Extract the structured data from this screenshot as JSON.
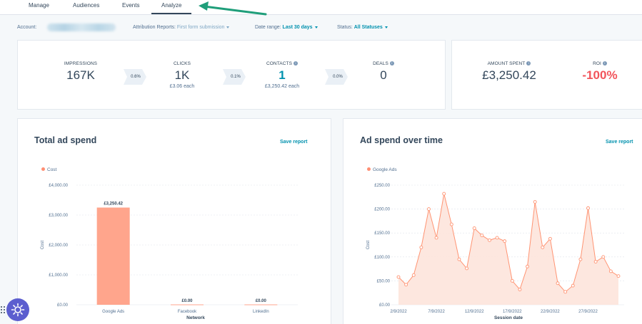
{
  "tabs": [
    {
      "label": "Manage"
    },
    {
      "label": "Audiences"
    },
    {
      "label": "Events"
    },
    {
      "label": "Analyze"
    }
  ],
  "filters": {
    "account_label": "Account:",
    "attribution_label": "Attribution Reports:",
    "attribution_value": "First form submission",
    "date_label": "Date range:",
    "date_value": "Last 30 days",
    "status_label": "Status:",
    "status_value": "All Statuses"
  },
  "kpis": {
    "impressions": {
      "label": "IMPRESSIONS",
      "value": "167K"
    },
    "rate1": "0.6%",
    "clicks": {
      "label": "CLICKS",
      "value": "1K",
      "sub": "£3.06 each"
    },
    "rate2": "0.1%",
    "contacts": {
      "label": "CONTACTS",
      "value": "1",
      "sub": "£3,250.42 each"
    },
    "rate3": "0.0%",
    "deals": {
      "label": "DEALS",
      "value": "0"
    },
    "amount_spent": {
      "label": "AMOUNT SPENT",
      "value": "£3,250.42"
    },
    "roi": {
      "label": "ROI",
      "value": "-100%"
    }
  },
  "total_ad_spend": {
    "title": "Total ad spend",
    "save": "Save report",
    "legend": "Cost"
  },
  "ad_spend_over_time": {
    "title": "Ad spend over time",
    "save": "Save report",
    "legend": "Google Ads"
  },
  "colors": {
    "accent": "#0091ae",
    "bar": "#ffa58c",
    "line": "#ff9473",
    "area": "#fde4dc",
    "negative": "#f2545b",
    "help_button": "#5c5ecf"
  },
  "chart_data": [
    {
      "type": "bar",
      "title": "Total ad spend",
      "categories": [
        "Google Ads",
        "Facebook",
        "LinkedIn"
      ],
      "values": [
        3250.42,
        0,
        0
      ],
      "value_labels": [
        "£3,250.42",
        "£0.00",
        "£0.00"
      ],
      "xlabel": "Network",
      "ylabel": "Cost",
      "ylim": [
        0,
        4000
      ],
      "yticks": [
        0,
        1000,
        2000,
        3000,
        4000
      ],
      "ytick_labels": [
        "£0.00",
        "£1,000.00",
        "£2,000.00",
        "£3,000.00",
        "£4,000.00"
      ],
      "legend": [
        "Cost"
      ],
      "grid": true
    },
    {
      "type": "area",
      "title": "Ad spend over time",
      "series": [
        {
          "name": "Google Ads",
          "values": [
            58,
            42,
            62,
            120,
            200,
            140,
            232,
            168,
            95,
            76,
            160,
            145,
            135,
            140,
            133,
            50,
            32,
            80,
            215,
            120,
            138,
            45,
            27,
            40,
            95,
            202,
            90,
            100,
            70,
            60
          ]
        }
      ],
      "xtick_labels": [
        "2/9/2022",
        "7/9/2022",
        "12/9/2022",
        "17/9/2022",
        "22/9/2022",
        "27/9/2022"
      ],
      "xtick_indices": [
        0,
        5,
        10,
        15,
        20,
        25
      ],
      "xlabel": "Session date",
      "ylabel": "Cost",
      "ylim": [
        0,
        250
      ],
      "yticks": [
        0,
        50,
        100,
        150,
        200,
        250
      ],
      "ytick_labels": [
        "£0.00",
        "£50.00",
        "£100.00",
        "£150.00",
        "£200.00",
        "£250.00"
      ],
      "legend": [
        "Google Ads"
      ],
      "grid": true
    }
  ]
}
